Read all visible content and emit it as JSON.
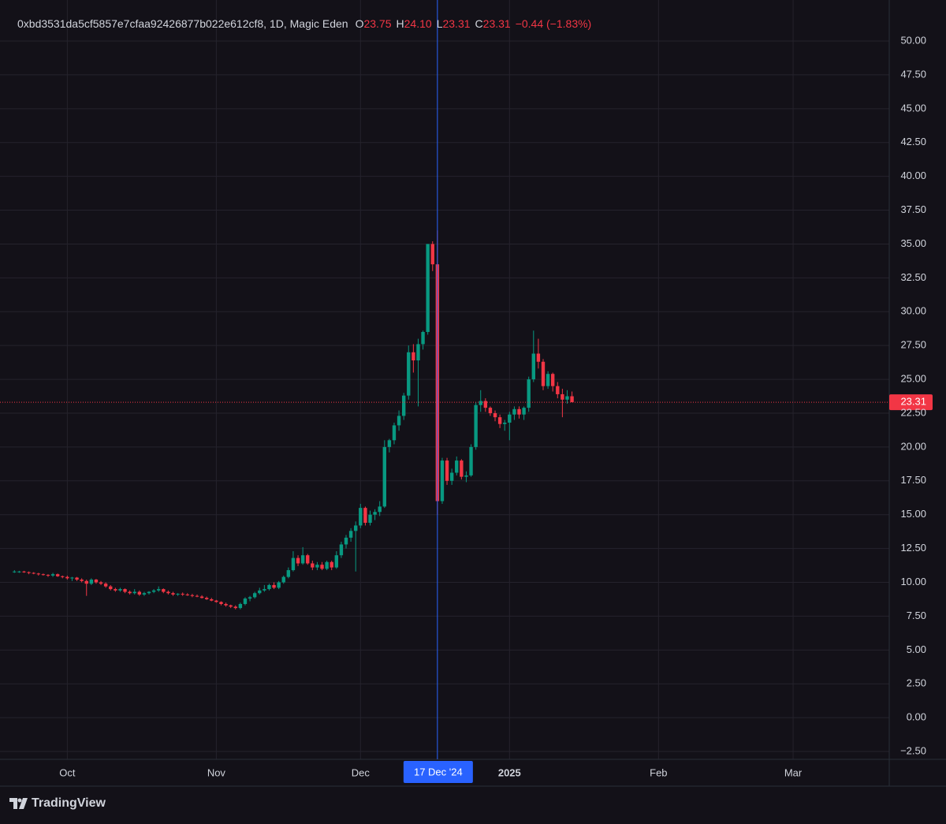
{
  "chart_data": {
    "type": "candlestick",
    "header": {
      "symbol": "0xbd3531da5cf5857e7cfaa92426877b022e612cf8, 1D, Magic Eden",
      "fields": [
        {
          "key": "O",
          "value": "23.75"
        },
        {
          "key": "H",
          "value": "24.10"
        },
        {
          "key": "L",
          "value": "23.31"
        },
        {
          "key": "C",
          "value": "23.31"
        }
      ],
      "change": "−0.44 (−1.83%)"
    },
    "up_color": "#089981",
    "down_color": "#f23645",
    "grid": true,
    "crosshair": {
      "x": "2024-12-17",
      "label": "17 Dec '24",
      "color": "#2962ff"
    },
    "xlim": [
      "2024-09-17",
      "2025-03-21"
    ],
    "xticks": [
      {
        "value": "2024-10-01",
        "label": "Oct"
      },
      {
        "value": "2024-11-01",
        "label": "Nov"
      },
      {
        "value": "2024-12-01",
        "label": "Dec"
      },
      {
        "value": "2025-01-01",
        "label": "2025"
      },
      {
        "value": "2025-02-01",
        "label": "Feb"
      },
      {
        "value": "2025-03-01",
        "label": "Mar"
      }
    ],
    "ylim": [
      -3.08,
      53.03
    ],
    "yticks": [
      {
        "value": -2.5,
        "label": "−2.50"
      },
      {
        "value": 0,
        "label": "0.00"
      },
      {
        "value": 2.5,
        "label": "2.50"
      },
      {
        "value": 5,
        "label": "5.00"
      },
      {
        "value": 7.5,
        "label": "7.50"
      },
      {
        "value": 10,
        "label": "10.00"
      },
      {
        "value": 12.5,
        "label": "12.50"
      },
      {
        "value": 15,
        "label": "15.00"
      },
      {
        "value": 17.5,
        "label": "17.50"
      },
      {
        "value": 20,
        "label": "20.00"
      },
      {
        "value": 22.5,
        "label": "22.50"
      },
      {
        "value": 25,
        "label": "25.00"
      },
      {
        "value": 27.5,
        "label": "27.50"
      },
      {
        "value": 30,
        "label": "30.00"
      },
      {
        "value": 32.5,
        "label": "32.50"
      },
      {
        "value": 35,
        "label": "35.00"
      },
      {
        "value": 37.5,
        "label": "37.50"
      },
      {
        "value": 40,
        "label": "40.00"
      },
      {
        "value": 42.5,
        "label": "42.50"
      },
      {
        "value": 45,
        "label": "45.00"
      },
      {
        "value": 47.5,
        "label": "47.50"
      },
      {
        "value": 50,
        "label": "50.00"
      }
    ],
    "x": [
      "2024-09-20",
      "2024-09-21",
      "2024-09-22",
      "2024-09-23",
      "2024-09-24",
      "2024-09-25",
      "2024-09-26",
      "2024-09-27",
      "2024-09-28",
      "2024-09-29",
      "2024-09-30",
      "2024-10-01",
      "2024-10-02",
      "2024-10-03",
      "2024-10-04",
      "2024-10-05",
      "2024-10-06",
      "2024-10-07",
      "2024-10-08",
      "2024-10-09",
      "2024-10-10",
      "2024-10-11",
      "2024-10-12",
      "2024-10-13",
      "2024-10-14",
      "2024-10-15",
      "2024-10-16",
      "2024-10-17",
      "2024-10-18",
      "2024-10-19",
      "2024-10-20",
      "2024-10-21",
      "2024-10-22",
      "2024-10-23",
      "2024-10-24",
      "2024-10-25",
      "2024-10-26",
      "2024-10-27",
      "2024-10-28",
      "2024-10-29",
      "2024-10-30",
      "2024-10-31",
      "2024-11-01",
      "2024-11-02",
      "2024-11-03",
      "2024-11-04",
      "2024-11-05",
      "2024-11-06",
      "2024-11-07",
      "2024-11-08",
      "2024-11-09",
      "2024-11-10",
      "2024-11-11",
      "2024-11-12",
      "2024-11-13",
      "2024-11-14",
      "2024-11-15",
      "2024-11-16",
      "2024-11-17",
      "2024-11-18",
      "2024-11-19",
      "2024-11-20",
      "2024-11-21",
      "2024-11-22",
      "2024-11-23",
      "2024-11-24",
      "2024-11-25",
      "2024-11-26",
      "2024-11-27",
      "2024-11-28",
      "2024-11-29",
      "2024-11-30",
      "2024-12-01",
      "2024-12-02",
      "2024-12-03",
      "2024-12-04",
      "2024-12-05",
      "2024-12-06",
      "2024-12-07",
      "2024-12-08",
      "2024-12-09",
      "2024-12-10",
      "2024-12-11",
      "2024-12-12",
      "2024-12-13",
      "2024-12-14",
      "2024-12-15",
      "2024-12-16",
      "2024-12-17",
      "2024-12-18",
      "2024-12-19",
      "2024-12-20",
      "2024-12-21",
      "2024-12-22",
      "2024-12-23",
      "2024-12-24",
      "2024-12-25",
      "2024-12-26",
      "2024-12-27",
      "2024-12-28",
      "2024-12-29",
      "2024-12-30",
      "2024-12-31",
      "2025-01-01",
      "2025-01-02",
      "2025-01-03",
      "2025-01-04",
      "2025-01-05",
      "2025-01-06",
      "2025-01-07",
      "2025-01-08",
      "2025-01-09",
      "2025-01-10",
      "2025-01-11",
      "2025-01-12",
      "2025-01-13",
      "2025-01-14"
    ],
    "values": [
      [
        10.8,
        10.9,
        10.7,
        10.8
      ],
      [
        10.8,
        10.85,
        10.7,
        10.8
      ],
      [
        10.8,
        10.85,
        10.7,
        10.75
      ],
      [
        10.75,
        10.8,
        10.6,
        10.7
      ],
      [
        10.7,
        10.75,
        10.6,
        10.65
      ],
      [
        10.65,
        10.7,
        10.5,
        10.6
      ],
      [
        10.6,
        10.65,
        10.5,
        10.55
      ],
      [
        10.55,
        10.6,
        10.4,
        10.5
      ],
      [
        10.5,
        10.7,
        10.4,
        10.6
      ],
      [
        10.6,
        10.65,
        10.4,
        10.45
      ],
      [
        10.45,
        10.5,
        10.3,
        10.4
      ],
      [
        10.4,
        10.5,
        10.2,
        10.3
      ],
      [
        10.3,
        10.4,
        10.1,
        10.35
      ],
      [
        10.35,
        10.4,
        10.1,
        10.2
      ],
      [
        10.2,
        10.3,
        10.0,
        10.1
      ],
      [
        10.1,
        10.2,
        9.0,
        9.9
      ],
      [
        9.9,
        10.3,
        9.8,
        10.2
      ],
      [
        10.2,
        10.25,
        9.9,
        10.0
      ],
      [
        10.0,
        10.1,
        9.8,
        9.9
      ],
      [
        9.9,
        10.0,
        9.6,
        9.7
      ],
      [
        9.7,
        9.8,
        9.4,
        9.5
      ],
      [
        9.5,
        9.6,
        9.3,
        9.4
      ],
      [
        9.4,
        9.6,
        9.3,
        9.5
      ],
      [
        9.5,
        9.55,
        9.2,
        9.3
      ],
      [
        9.3,
        9.4,
        9.1,
        9.2
      ],
      [
        9.2,
        9.5,
        9.1,
        9.3
      ],
      [
        9.3,
        9.4,
        9.0,
        9.1
      ],
      [
        9.1,
        9.3,
        9.0,
        9.2
      ],
      [
        9.2,
        9.35,
        9.1,
        9.3
      ],
      [
        9.3,
        9.5,
        9.2,
        9.4
      ],
      [
        9.4,
        9.7,
        9.3,
        9.5
      ],
      [
        9.5,
        9.55,
        9.2,
        9.3
      ],
      [
        9.3,
        9.4,
        9.1,
        9.2
      ],
      [
        9.2,
        9.3,
        9.0,
        9.1
      ],
      [
        9.1,
        9.2,
        9.0,
        9.15
      ],
      [
        9.15,
        9.25,
        9.0,
        9.1
      ],
      [
        9.1,
        9.2,
        9.0,
        9.05
      ],
      [
        9.05,
        9.15,
        8.9,
        9.0
      ],
      [
        9.0,
        9.1,
        8.9,
        8.95
      ],
      [
        8.95,
        9.05,
        8.8,
        8.85
      ],
      [
        8.85,
        8.95,
        8.7,
        8.75
      ],
      [
        8.75,
        8.85,
        8.6,
        8.65
      ],
      [
        8.65,
        8.7,
        8.5,
        8.55
      ],
      [
        8.55,
        8.6,
        8.3,
        8.4
      ],
      [
        8.4,
        8.5,
        8.2,
        8.3
      ],
      [
        8.3,
        8.35,
        8.1,
        8.2
      ],
      [
        8.2,
        8.3,
        8.0,
        8.1
      ],
      [
        8.1,
        8.5,
        8.0,
        8.4
      ],
      [
        8.4,
        8.9,
        8.3,
        8.8
      ],
      [
        8.8,
        9.0,
        8.6,
        8.9
      ],
      [
        8.9,
        9.3,
        8.8,
        9.2
      ],
      [
        9.2,
        9.6,
        9.1,
        9.4
      ],
      [
        9.4,
        9.8,
        9.3,
        9.5
      ],
      [
        9.5,
        9.9,
        9.4,
        9.8
      ],
      [
        9.8,
        10.0,
        9.5,
        9.6
      ],
      [
        9.6,
        10.1,
        9.5,
        10.0
      ],
      [
        10.0,
        10.5,
        9.9,
        10.4
      ],
      [
        10.4,
        11.1,
        10.3,
        10.9
      ],
      [
        10.9,
        12.3,
        10.8,
        11.8
      ],
      [
        11.8,
        12.0,
        11.2,
        11.4
      ],
      [
        11.4,
        12.6,
        11.3,
        12.0
      ],
      [
        12.0,
        12.1,
        11.3,
        11.4
      ],
      [
        11.4,
        11.6,
        10.9,
        11.1
      ],
      [
        11.1,
        11.5,
        10.9,
        11.3
      ],
      [
        11.3,
        11.5,
        10.9,
        11.0
      ],
      [
        11.0,
        11.6,
        10.9,
        11.5
      ],
      [
        11.5,
        11.6,
        10.9,
        11.1
      ],
      [
        11.1,
        12.3,
        11.0,
        12.0
      ],
      [
        12.0,
        13.0,
        11.8,
        12.8
      ],
      [
        12.8,
        13.5,
        12.5,
        13.3
      ],
      [
        13.3,
        14.0,
        13.0,
        13.8
      ],
      [
        13.8,
        14.5,
        10.8,
        14.2
      ],
      [
        14.2,
        15.8,
        14.0,
        15.5
      ],
      [
        15.5,
        15.6,
        14.2,
        14.4
      ],
      [
        14.4,
        15.3,
        14.2,
        15.0
      ],
      [
        15.0,
        15.4,
        14.6,
        15.2
      ],
      [
        15.2,
        16.0,
        14.9,
        15.6
      ],
      [
        15.6,
        20.5,
        15.5,
        20.0
      ],
      [
        20.0,
        20.6,
        19.6,
        20.5
      ],
      [
        20.5,
        21.8,
        20.2,
        21.6
      ],
      [
        21.6,
        22.7,
        21.2,
        22.3
      ],
      [
        22.3,
        24.0,
        22.0,
        23.8
      ],
      [
        23.8,
        27.5,
        23.5,
        27.0
      ],
      [
        27.0,
        27.6,
        25.5,
        26.4
      ],
      [
        26.4,
        28.0,
        23.0,
        27.6
      ],
      [
        27.6,
        28.6,
        27.2,
        28.5
      ],
      [
        28.5,
        35.0,
        28.3,
        35.0
      ],
      [
        35.0,
        35.2,
        33.0,
        33.5
      ],
      [
        33.5,
        36.0,
        15.0,
        16.0
      ],
      [
        16.0,
        19.2,
        15.8,
        19.0
      ],
      [
        19.0,
        19.2,
        17.2,
        17.5
      ],
      [
        17.5,
        18.4,
        17.2,
        18.1
      ],
      [
        18.1,
        19.3,
        17.9,
        19.0
      ],
      [
        19.0,
        19.1,
        17.6,
        17.8
      ],
      [
        17.8,
        18.2,
        17.4,
        17.9
      ],
      [
        17.9,
        20.2,
        17.8,
        20.0
      ],
      [
        20.0,
        23.3,
        19.8,
        23.1
      ],
      [
        23.1,
        24.2,
        22.6,
        23.4
      ],
      [
        23.4,
        23.6,
        22.6,
        22.9
      ],
      [
        22.9,
        23.0,
        22.3,
        22.5
      ],
      [
        22.5,
        22.7,
        21.9,
        22.2
      ],
      [
        22.2,
        22.4,
        21.4,
        21.7
      ],
      [
        21.7,
        22.0,
        21.2,
        21.8
      ],
      [
        21.8,
        22.6,
        20.5,
        22.4
      ],
      [
        22.4,
        23.0,
        22.0,
        22.8
      ],
      [
        22.8,
        23.0,
        22.1,
        22.4
      ],
      [
        22.4,
        23.0,
        22.0,
        22.9
      ],
      [
        22.9,
        25.2,
        22.6,
        25.0
      ],
      [
        25.0,
        28.6,
        24.8,
        26.9
      ],
      [
        26.9,
        28.0,
        25.8,
        26.3
      ],
      [
        26.3,
        26.5,
        24.2,
        24.5
      ],
      [
        24.5,
        25.6,
        24.3,
        25.4
      ],
      [
        25.4,
        25.5,
        24.1,
        24.5
      ],
      [
        24.5,
        24.8,
        23.6,
        23.9
      ],
      [
        23.9,
        24.3,
        22.2,
        23.5
      ],
      [
        23.5,
        24.2,
        23.2,
        23.75
      ],
      [
        23.75,
        24.1,
        23.31,
        23.31
      ]
    ]
  },
  "footer": {
    "brand": "TradingView"
  }
}
